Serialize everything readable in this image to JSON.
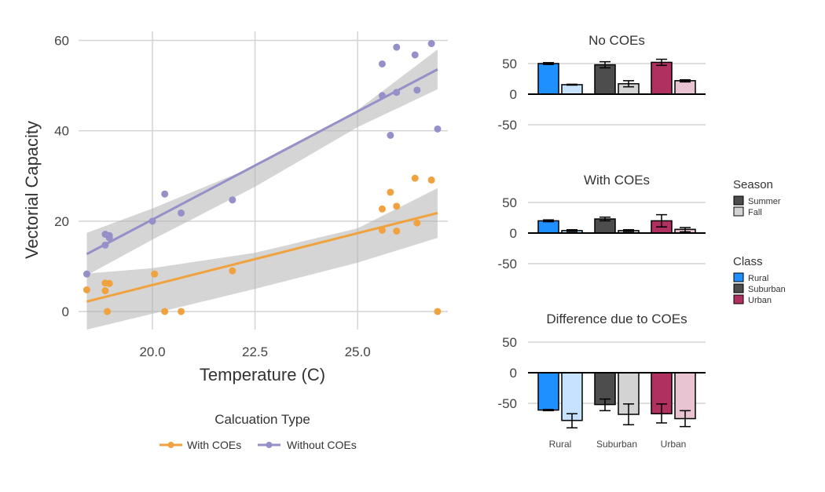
{
  "chart_data": [
    {
      "type": "scatter",
      "xlabel": "Temperature (C)",
      "ylabel": "Vectorial Capacity",
      "xlim": [
        18.2,
        27.2
      ],
      "ylim": [
        -4,
        62
      ],
      "xticks": [
        20.0,
        22.5,
        25.0
      ],
      "xtick_labels": [
        "20.0",
        "22.5",
        "25.0"
      ],
      "yticks": [
        0,
        20,
        40,
        60
      ],
      "ytick_labels": [
        "0",
        "20",
        "40",
        "60"
      ],
      "grid": true,
      "legend_title": "Calcuation Type",
      "legend_position": "bottom",
      "series": [
        {
          "name": "With COEs",
          "color": "#f0a23e",
          "points": [
            [
              18.4,
              4.8
            ],
            [
              18.85,
              6.3
            ],
            [
              18.95,
              6.2
            ],
            [
              18.85,
              4.6
            ],
            [
              18.9,
              0
            ],
            [
              20.05,
              8.3
            ],
            [
              20.3,
              0
            ],
            [
              20.7,
              0
            ],
            [
              21.95,
              9.0
            ],
            [
              25.6,
              22.7
            ],
            [
              25.8,
              26.4
            ],
            [
              25.95,
              23.3
            ],
            [
              25.6,
              18.0
            ],
            [
              25.95,
              17.8
            ],
            [
              26.4,
              29.5
            ],
            [
              26.8,
              29.1
            ],
            [
              26.45,
              19.6
            ],
            [
              26.95,
              0
            ]
          ],
          "fit": {
            "x": [
              18.4,
              26.95
            ],
            "y": [
              2.2,
              21.8
            ]
          },
          "band_upper": [
            [
              18.4,
              8.4
            ],
            [
              20,
              9.6
            ],
            [
              22.5,
              13.0
            ],
            [
              25,
              18.4
            ],
            [
              26.95,
              27.3
            ]
          ],
          "band_lower": [
            [
              18.4,
              -4.0
            ],
            [
              20,
              -0.5
            ],
            [
              22.5,
              5.0
            ],
            [
              25,
              10.8
            ],
            [
              26.95,
              16.3
            ]
          ]
        },
        {
          "name": "Without COEs",
          "color": "#9590c8",
          "points": [
            [
              18.4,
              8.3
            ],
            [
              18.85,
              17.1
            ],
            [
              18.95,
              16.3
            ],
            [
              18.85,
              14.7
            ],
            [
              18.95,
              16.8
            ],
            [
              20.0,
              20.0
            ],
            [
              20.3,
              26.0
            ],
            [
              20.7,
              21.8
            ],
            [
              21.95,
              24.7
            ],
            [
              25.6,
              54.8
            ],
            [
              25.6,
              47.8
            ],
            [
              25.8,
              39.0
            ],
            [
              25.95,
              58.5
            ],
            [
              25.95,
              48.5
            ],
            [
              26.4,
              56.8
            ],
            [
              26.45,
              49.0
            ],
            [
              26.8,
              59.3
            ],
            [
              26.95,
              40.4
            ]
          ],
          "fit": {
            "x": [
              18.4,
              26.95
            ],
            "y": [
              12.7,
              53.6
            ]
          },
          "band_upper": [
            [
              18.4,
              17.4
            ],
            [
              20,
              22.8
            ],
            [
              22.5,
              32.2
            ],
            [
              25,
              44.6
            ],
            [
              26.95,
              58.0
            ]
          ],
          "band_lower": [
            [
              18.4,
              8.0
            ],
            [
              20,
              15.9
            ],
            [
              22.5,
              27.6
            ],
            [
              25,
              40.8
            ],
            [
              26.95,
              49.2
            ]
          ]
        }
      ]
    },
    {
      "type": "bar",
      "title": "No COEs",
      "categories": [
        "Rural",
        "Suburban",
        "Urban"
      ],
      "ylim": [
        -62,
        62
      ],
      "yticks": [
        50,
        0,
        -50
      ],
      "ytick_labels": [
        "50",
        "0",
        "-50"
      ],
      "series": [
        {
          "name": "Summer",
          "values": [
            50,
            48,
            52
          ],
          "errors": [
            [
              48.5,
              51.5
            ],
            [
              43,
              53
            ],
            [
              47,
              57
            ]
          ]
        },
        {
          "name": "Fall",
          "values": [
            15.5,
            17,
            22
          ],
          "errors": [
            [
              14.8,
              16.2
            ],
            [
              12,
              22
            ],
            [
              20,
              23.5
            ]
          ]
        }
      ]
    },
    {
      "type": "bar",
      "title": "With COEs",
      "categories": [
        "Rural",
        "Suburban",
        "Urban"
      ],
      "ylim": [
        -62,
        62
      ],
      "yticks": [
        50,
        0,
        -50
      ],
      "ytick_labels": [
        "50",
        "0",
        "-50"
      ],
      "series": [
        {
          "name": "Summer",
          "values": [
            20,
            23,
            20
          ],
          "errors": [
            [
              18.5,
              21.5
            ],
            [
              20,
              26
            ],
            [
              10,
              30
            ]
          ]
        },
        {
          "name": "Fall",
          "values": [
            4,
            4,
            6
          ],
          "errors": [
            [
              2.5,
              5.5
            ],
            [
              2.5,
              5.5
            ],
            [
              2,
              9
            ]
          ]
        }
      ]
    },
    {
      "type": "bar",
      "title": "Difference due to COEs",
      "categories": [
        "Rural",
        "Suburban",
        "Urban"
      ],
      "category_labels_shown": true,
      "ylim": [
        -90,
        62
      ],
      "yticks": [
        50,
        0,
        -50
      ],
      "ytick_labels": [
        "50",
        "0",
        "-50"
      ],
      "series": [
        {
          "name": "Summer",
          "values": [
            -61,
            -52,
            -67
          ],
          "errors": [
            [
              -62,
              -60
            ],
            [
              -62,
              -43
            ],
            [
              -82,
              -51
            ]
          ]
        },
        {
          "name": "Fall",
          "values": [
            -78,
            -68,
            -75
          ],
          "errors": [
            [
              -90,
              -67
            ],
            [
              -85,
              -51
            ],
            [
              -88,
              -62
            ]
          ]
        }
      ]
    }
  ],
  "legends": {
    "season": {
      "title": "Season",
      "items": [
        {
          "label": "Summer",
          "color": "#4d4d4d"
        },
        {
          "label": "Fall",
          "color": "#d3d3d3"
        }
      ]
    },
    "class": {
      "title": "Class",
      "items": [
        {
          "label": "Rural",
          "color": "#1e90ff"
        },
        {
          "label": "Suburban",
          "color": "#4d4d4d"
        },
        {
          "label": "Urban",
          "color": "#b03060"
        }
      ]
    }
  },
  "colors": {
    "rural_summer": "#1e90ff",
    "rural_fall": "#c6e2ff",
    "suburban_summer": "#4d4d4d",
    "suburban_fall": "#d3d3d3",
    "urban_summer": "#b03060",
    "urban_fall": "#e8c4d2"
  }
}
